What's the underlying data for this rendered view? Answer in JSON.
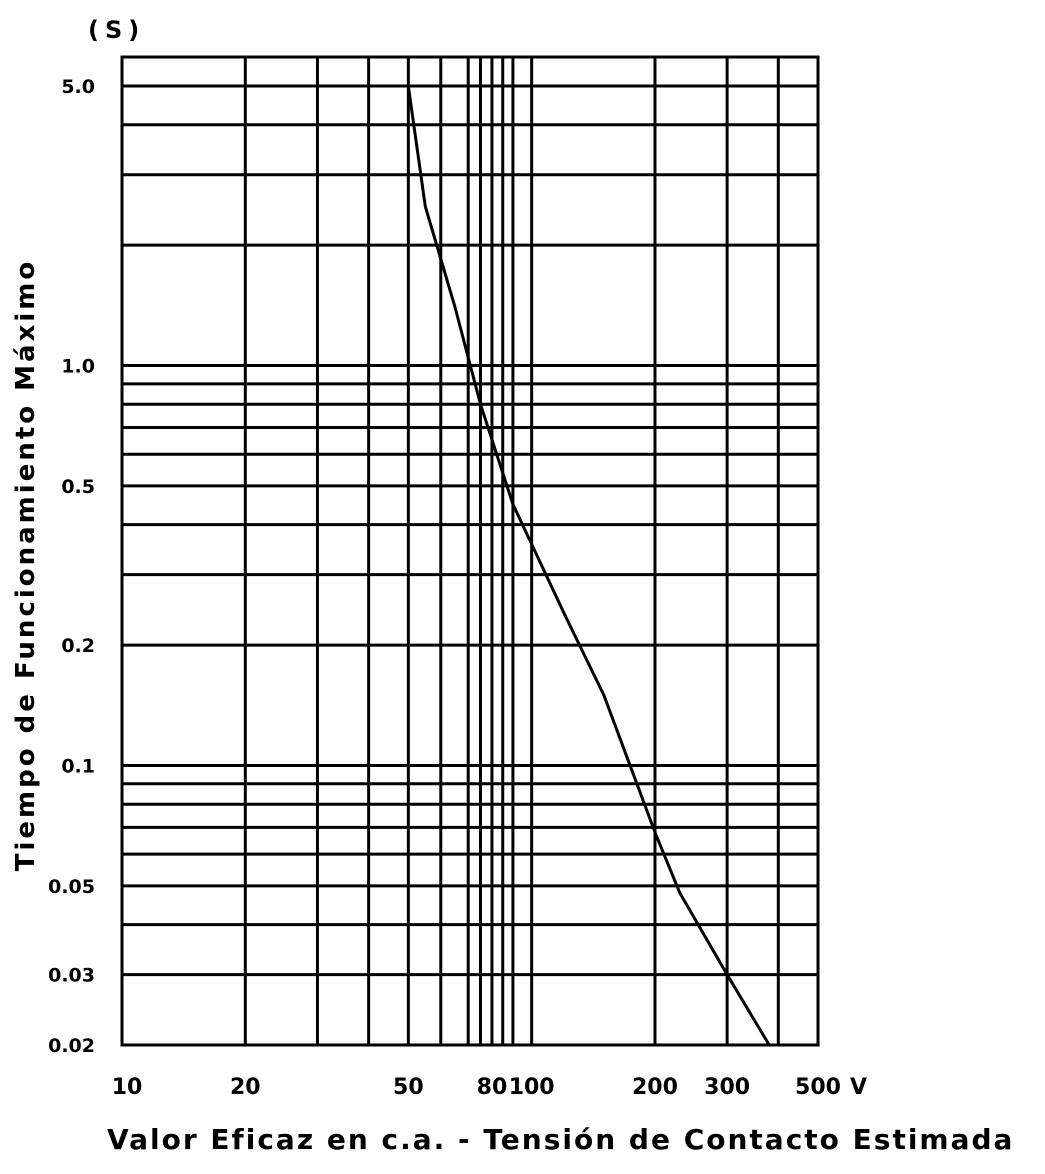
{
  "chart_data": {
    "type": "line",
    "xscale": "log",
    "yscale": "log",
    "xlim": [
      10,
      500
    ],
    "ylim": [
      0.02,
      5.0
    ],
    "grid": true,
    "y_unit_label": "(S)",
    "xlabel": "Valor Eficaz en c.a. - Tensión de Contacto Estimada",
    "ylabel": "Tiempo de Funcionamiento Máximo",
    "x_ticks": [
      {
        "value": 10,
        "label": "10"
      },
      {
        "value": 20,
        "label": "20"
      },
      {
        "value": 50,
        "label": "50"
      },
      {
        "value": 80,
        "label": "80"
      },
      {
        "value": 100,
        "label": "100"
      },
      {
        "value": 200,
        "label": "200"
      },
      {
        "value": 300,
        "label": "300"
      },
      {
        "value": 500,
        "label": "500"
      }
    ],
    "x_unit": "V",
    "y_ticks": [
      {
        "value": 5.0,
        "label": "5.0"
      },
      {
        "value": 1.0,
        "label": "1.0"
      },
      {
        "value": 0.5,
        "label": "0.5"
      },
      {
        "value": 0.2,
        "label": "0.2"
      },
      {
        "value": 0.1,
        "label": "0.1"
      },
      {
        "value": 0.05,
        "label": "0.05"
      },
      {
        "value": 0.03,
        "label": "0.03"
      },
      {
        "value": 0.02,
        "label": "0.02"
      }
    ],
    "x_gridlines": [
      20,
      30,
      40,
      50,
      60,
      70,
      75,
      80,
      85,
      90,
      100,
      200,
      300,
      400,
      500
    ],
    "y_gridlines": [
      5.0,
      4.0,
      3.0,
      2.0,
      1.0,
      0.9,
      0.8,
      0.7,
      0.6,
      0.5,
      0.4,
      0.3,
      0.2,
      0.1,
      0.09,
      0.08,
      0.07,
      0.06,
      0.05,
      0.04,
      0.03,
      0.02
    ],
    "series": [
      {
        "values": [
          {
            "x": 50,
            "y": 5.0
          },
          {
            "x": 55,
            "y": 2.5
          },
          {
            "x": 65,
            "y": 1.4
          },
          {
            "x": 75,
            "y": 0.8
          },
          {
            "x": 90,
            "y": 0.45
          },
          {
            "x": 120,
            "y": 0.24
          },
          {
            "x": 150,
            "y": 0.15
          },
          {
            "x": 200,
            "y": 0.068
          },
          {
            "x": 230,
            "y": 0.048
          },
          {
            "x": 300,
            "y": 0.03
          },
          {
            "x": 380,
            "y": 0.02
          }
        ]
      }
    ]
  }
}
